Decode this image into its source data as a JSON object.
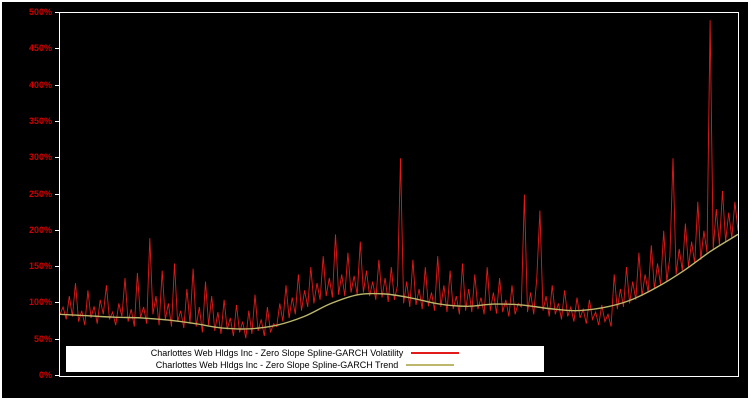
{
  "chart_data": {
    "type": "line",
    "title": "",
    "xlabel": "",
    "ylabel": "",
    "ylim": [
      0,
      500
    ],
    "y_ticks": [
      0,
      50,
      100,
      150,
      200,
      250,
      300,
      350,
      400,
      450,
      500
    ],
    "y_tick_labels": [
      "0%",
      "50%",
      "100%",
      "150%",
      "200%",
      "250%",
      "300%",
      "350%",
      "400%",
      "450%",
      "500%"
    ],
    "grid": false,
    "background": "#000000",
    "axis_label_color": "#cc0000",
    "legend_position": "bottom-center",
    "series": [
      {
        "name": "Charlottes Web Hldgs Inc - Zero Slope Spline-GARCH Volatility",
        "color": "#e31a1a",
        "unit": "%",
        "values": [
          85,
          95,
          78,
          110,
          82,
          128,
          75,
          90,
          70,
          118,
          80,
          96,
          72,
          105,
          85,
          125,
          78,
          88,
          70,
          100,
          82,
          135,
          75,
          92,
          68,
          142,
          80,
          95,
          72,
          190,
          85,
          110,
          70,
          145,
          78,
          100,
          68,
          155,
          75,
          90,
          66,
          120,
          72,
          148,
          68,
          95,
          60,
          130,
          70,
          110,
          62,
          88,
          58,
          105,
          64,
          80,
          55,
          98,
          60,
          75,
          52,
          90,
          58,
          112,
          62,
          78,
          55,
          95,
          60,
          72,
          68,
          100,
          75,
          125,
          80,
          108,
          85,
          140,
          90,
          118,
          95,
          150,
          100,
          128,
          105,
          165,
          110,
          135,
          108,
          195,
          112,
          140,
          110,
          170,
          115,
          138,
          112,
          185,
          115,
          145,
          110,
          130,
          105,
          160,
          108,
          135,
          102,
          150,
          105,
          125,
          300,
          100,
          130,
          95,
          160,
          98,
          120,
          92,
          150,
          96,
          115,
          90,
          165,
          95,
          125,
          88,
          145,
          92,
          110,
          85,
          155,
          90,
          120,
          88,
          140,
          92,
          108,
          85,
          150,
          90,
          115,
          86,
          135,
          88,
          105,
          82,
          125,
          85,
          100,
          95,
          250,
          88,
          115,
          85,
          135,
          228,
          90,
          110,
          82,
          125,
          85,
          100,
          78,
          118,
          82,
          95,
          75,
          108,
          80,
          92,
          72,
          105,
          78,
          88,
          70,
          98,
          75,
          85,
          68,
          140,
          92,
          120,
          95,
          150,
          100,
          130,
          105,
          170,
          110,
          140,
          115,
          180,
          120,
          155,
          125,
          200,
          130,
          165,
          300,
          140,
          175,
          145,
          210,
          150,
          185,
          155,
          240,
          160,
          200,
          170,
          490,
          175,
          230,
          180,
          255,
          185,
          225,
          190,
          240,
          200
        ]
      },
      {
        "name": "Charlottes Web Hldgs Inc - Zero Slope Spline-GARCH Trend",
        "color": "#bdb76b",
        "unit": "%",
        "values": [
          85,
          83,
          81,
          80,
          77,
          72,
          66,
          65,
          70,
          82,
          100,
          112,
          113,
          107,
          99,
          96,
          99,
          98,
          93,
          90,
          94,
          104,
          122,
          145,
          172,
          195
        ]
      }
    ]
  }
}
